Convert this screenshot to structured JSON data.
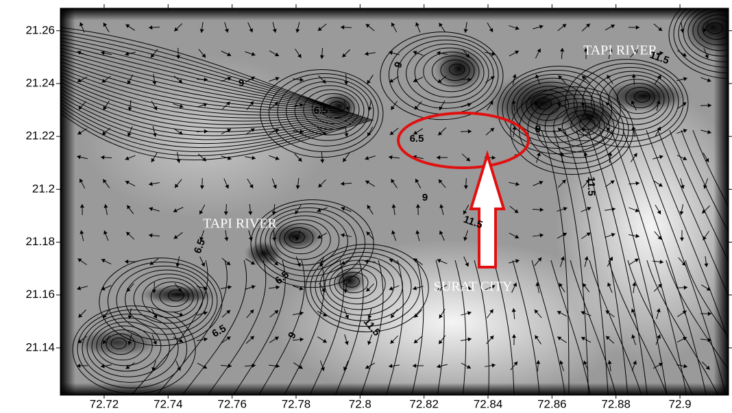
{
  "map": {
    "xlim": [
      72.7063,
      72.9152
    ],
    "ylim": [
      21.1221,
      21.2685
    ],
    "xticks": [
      72.72,
      72.74,
      72.76,
      72.78,
      72.8,
      72.82,
      72.84,
      72.86,
      72.88,
      72.9
    ],
    "yticks": [
      21.14,
      21.16,
      21.18,
      21.2,
      21.22,
      21.24,
      21.26
    ],
    "place_labels": [
      "TAPI RIVER",
      "TAPI RIVER",
      "SURAT CITY"
    ],
    "contour_labels": [
      9,
      9,
      6.5,
      6.5,
      9,
      11.5,
      11.5,
      9,
      6.5,
      6.5,
      6.5,
      9,
      11.5,
      11.5
    ]
  }
}
